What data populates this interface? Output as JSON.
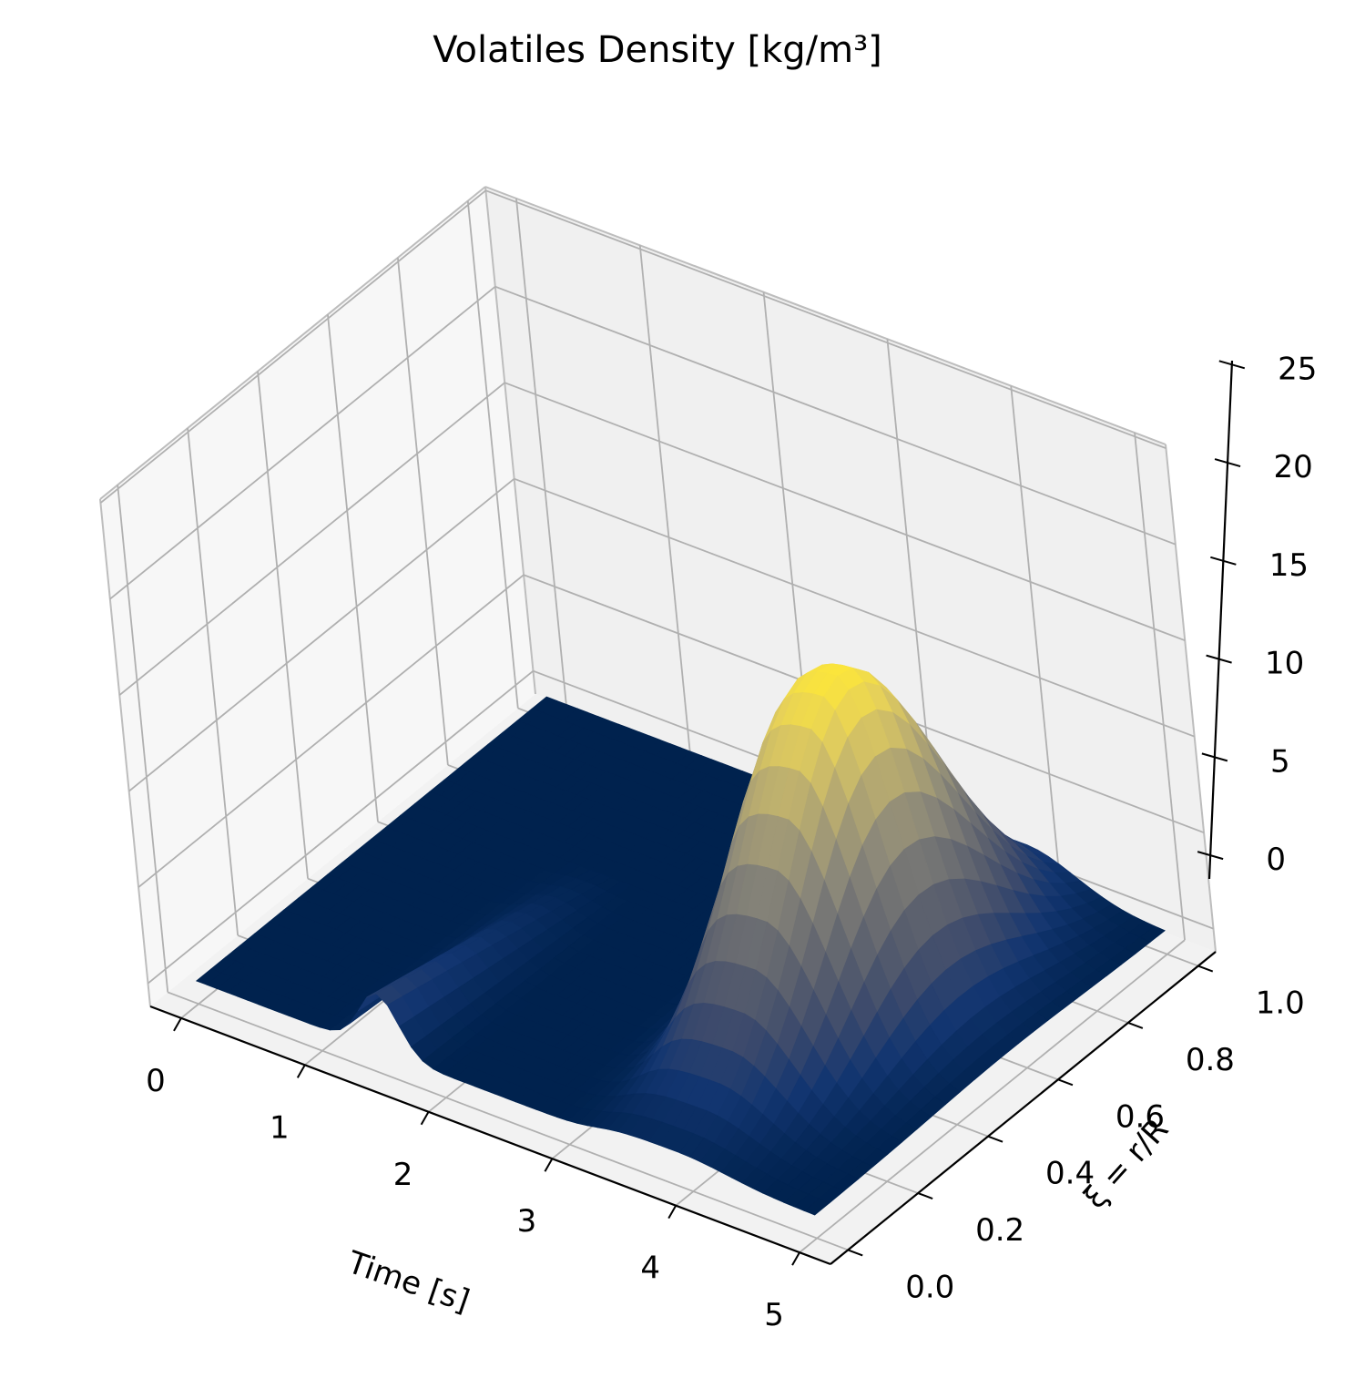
{
  "chart_data": {
    "type": "surface3d",
    "title": "Volatiles Density [kg/m³]",
    "xlabel": "Time [s]",
    "ylabel": "ξ = r/R",
    "zlabel": "",
    "xlim": [
      -0.25,
      5.25
    ],
    "ylim": [
      -0.05,
      1.05
    ],
    "zlim": [
      -1.2,
      25.2
    ],
    "x_ticks": [
      "0",
      "1",
      "2",
      "3",
      "4",
      "5"
    ],
    "y_ticks": [
      "0.0",
      "0.2",
      "0.4",
      "0.6",
      "0.8",
      "1.0"
    ],
    "z_ticks": [
      "0",
      "5",
      "10",
      "15",
      "20",
      "25"
    ],
    "grid": true,
    "colormap": "cividis",
    "colormap_stops": [
      "#00224e",
      "#123570",
      "#3b496c",
      "#575d6d",
      "#707173",
      "#8a8779",
      "#a69d75",
      "#c4b56c",
      "#e4cf5b",
      "#fee838"
    ],
    "surface_samples": {
      "time_s": [
        0,
        0.5,
        1.0,
        1.25,
        1.5,
        1.75,
        2.0,
        2.5,
        3.0,
        3.5,
        4.0,
        4.5,
        5.0
      ],
      "xi_0_density": [
        0.0,
        0.0,
        0.2,
        1.5,
        3.0,
        1.6,
        0.3,
        0.0,
        0.0,
        0.0,
        0.0,
        0.0,
        0.0
      ],
      "xi_0_3_density": [
        0.0,
        0.0,
        0.1,
        0.8,
        1.6,
        0.8,
        0.1,
        0.0,
        0.0,
        0.0,
        0.0,
        0.0,
        0.0
      ],
      "peak_region": {
        "time_center_s": 3.5,
        "xi_center": 0.55,
        "peak_density": 17.5
      }
    }
  }
}
